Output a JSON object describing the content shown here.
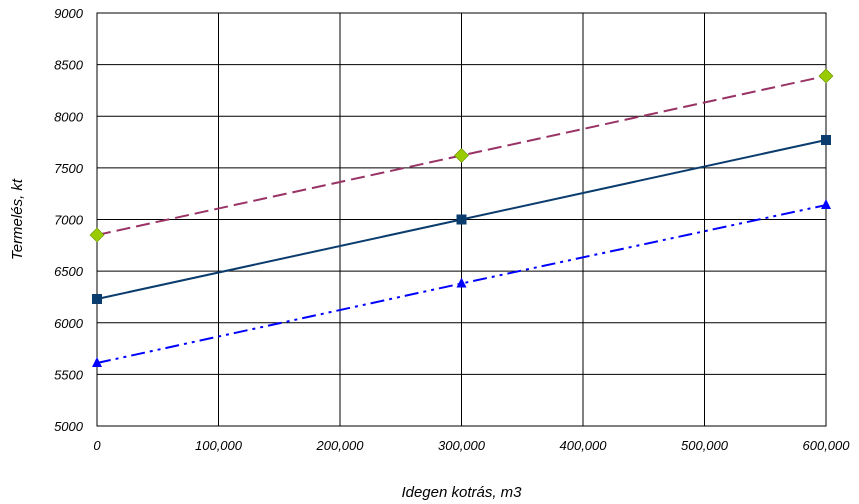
{
  "chart_data": {
    "type": "line",
    "title": "",
    "xlabel": "Idegen kotrás,  m3",
    "ylabel": "Termelés,  kt",
    "xlim": [
      0,
      600000
    ],
    "ylim": [
      5000,
      9000
    ],
    "x_ticks": [
      0,
      100000,
      200000,
      300000,
      400000,
      500000,
      600000
    ],
    "x_tick_labels": [
      "0",
      "100,000",
      "200,000",
      "300,000",
      "400,000",
      "500,000",
      "600,000"
    ],
    "y_ticks": [
      5000,
      5500,
      6000,
      6500,
      7000,
      7500,
      8000,
      8500,
      9000
    ],
    "y_tick_labels": [
      "5000",
      "5500",
      "6000",
      "6500",
      "7000",
      "7500",
      "8000",
      "8500",
      "9000"
    ],
    "grid": true,
    "legend": "none",
    "x": [
      0,
      300000,
      600000
    ],
    "series": [
      {
        "values": [
          6850,
          7620,
          8390
        ],
        "color": "#993366",
        "line_style": "dashed",
        "marker": "diamond",
        "marker_color": "#99cc00"
      },
      {
        "values": [
          6230,
          7000,
          7770
        ],
        "color": "#0a3c6e",
        "line_style": "solid",
        "marker": "square",
        "marker_color": "#0a3c6e"
      },
      {
        "values": [
          5610,
          6380,
          7140
        ],
        "color": "#0000ff",
        "line_style": "dash-dot-dot",
        "marker": "triangle",
        "marker_color": "#0000ff"
      }
    ]
  }
}
